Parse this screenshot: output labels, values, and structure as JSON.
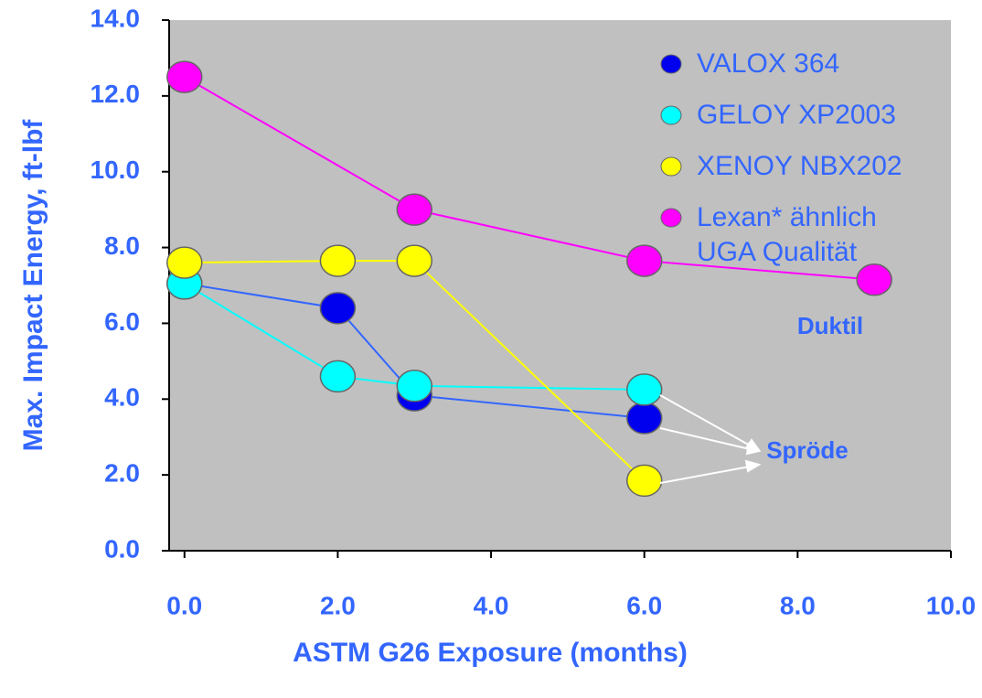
{
  "chart_data": {
    "type": "line",
    "x_label": "ASTM G26 Exposure (months)",
    "y_label": "Max. Impact Energy, ft-lbf",
    "xlim": [
      -0.2,
      10
    ],
    "ylim": [
      0,
      14
    ],
    "xticks": [
      {
        "value": 0,
        "label": "0.0"
      },
      {
        "value": 2,
        "label": "2.0"
      },
      {
        "value": 4,
        "label": "4.0"
      },
      {
        "value": 6,
        "label": "6.0"
      },
      {
        "value": 8,
        "label": "8.0"
      },
      {
        "value": 10,
        "label": "10.0"
      }
    ],
    "yticks": [
      {
        "value": 0,
        "label": "0.0"
      },
      {
        "value": 2,
        "label": "2.0"
      },
      {
        "value": 4,
        "label": "4.0"
      },
      {
        "value": 6,
        "label": "6.0"
      },
      {
        "value": 8,
        "label": "8.0"
      },
      {
        "value": 10,
        "label": "10.0"
      },
      {
        "value": 12,
        "label": "12.0"
      },
      {
        "value": 14,
        "label": "14.0"
      }
    ],
    "series": [
      {
        "name": "VALOX 364",
        "color": "#0000ee",
        "line_color": "#3366ff",
        "x": [
          0,
          2,
          3,
          6
        ],
        "values": [
          7.05,
          6.4,
          4.1,
          3.5
        ]
      },
      {
        "name": "GELOY XP2003",
        "color": "#00ffff",
        "line_color": "#00ffff",
        "x": [
          0,
          2,
          3,
          6
        ],
        "values": [
          7.05,
          4.6,
          4.35,
          4.25
        ]
      },
      {
        "name": "XENOY NBX202",
        "color": "#ffff00",
        "line_color": "#ffff00",
        "x": [
          0,
          2,
          3,
          6
        ],
        "values": [
          7.6,
          7.65,
          7.65,
          1.85
        ]
      },
      {
        "name": "Lexan* ähnlich UGA Qualität",
        "color": "#ff00ff",
        "line_color": "#ff00ff",
        "x": [
          0,
          3,
          6,
          9
        ],
        "values": [
          12.5,
          9.0,
          7.65,
          7.15
        ]
      }
    ],
    "annotations": [
      "Duktil",
      "Spröde"
    ]
  }
}
